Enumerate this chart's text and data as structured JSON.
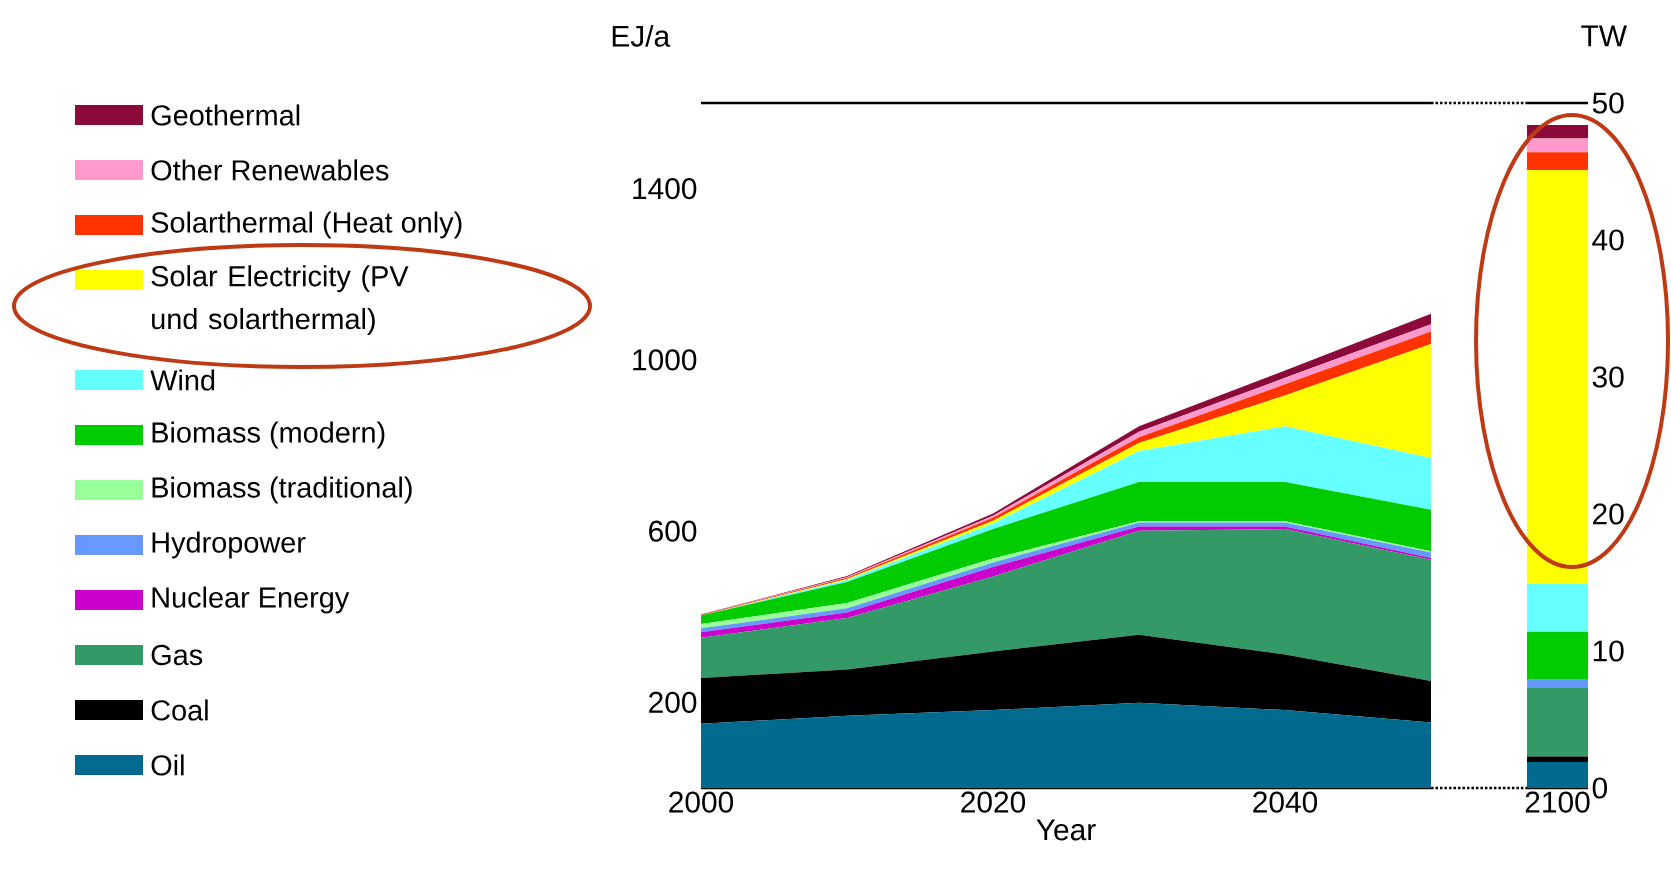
{
  "chart_data": [
    {
      "type": "area",
      "stacked": true,
      "xlabel": "Year",
      "ylabel": "EJ/a",
      "legend": "left",
      "x": [
        2000,
        2010,
        2020,
        2030,
        2040,
        2050
      ],
      "xlim": [
        2000,
        2050
      ],
      "xticks": [
        2000,
        2020,
        2040
      ],
      "ylim": [
        0,
        1600
      ],
      "yticks": [
        200,
        600,
        1000,
        1400
      ],
      "series": [
        {
          "name": "Oil",
          "color": "#006b8f",
          "values": [
            150,
            169,
            182,
            199,
            182,
            153
          ]
        },
        {
          "name": "Coal",
          "color": "#000000",
          "values": [
            107,
            108,
            137,
            159,
            130,
            97
          ]
        },
        {
          "name": "Gas",
          "color": "#339966",
          "values": [
            94,
            120,
            175,
            243,
            293,
            283
          ]
        },
        {
          "name": "Nuclear Energy",
          "color": "#cc00cc",
          "values": [
            13,
            13,
            22,
            10,
            6,
            4
          ]
        },
        {
          "name": "Hydropower",
          "color": "#6699ff",
          "values": [
            9,
            10,
            11,
            9,
            9,
            13
          ]
        },
        {
          "name": "Biomass (traditional)",
          "color": "#99ff99",
          "values": [
            10,
            12,
            9,
            3,
            3,
            3
          ]
        },
        {
          "name": "Biomass (modern)",
          "color": "#00cc00",
          "values": [
            20,
            49,
            69,
            92,
            92,
            97
          ]
        },
        {
          "name": "Wind",
          "color": "#66ffff",
          "values": [
            0,
            5,
            13,
            72,
            130,
            121
          ]
        },
        {
          "name": "Solar Electricity (PV und solarthermal)",
          "color": "#ffff00",
          "values": [
            0,
            2,
            6,
            19,
            72,
            266
          ]
        },
        {
          "name": "Solarthermal (Heat only)",
          "color": "#ff3300",
          "values": [
            1,
            3,
            7,
            13,
            26,
            29
          ]
        },
        {
          "name": "Other Renewables",
          "color": "#ff99cc",
          "values": [
            0,
            2,
            5,
            13,
            15,
            17
          ]
        },
        {
          "name": "Geothermal",
          "color": "#8b0a3a",
          "values": [
            1,
            2,
            5,
            13,
            17,
            25
          ]
        }
      ]
    },
    {
      "type": "bar",
      "stacked": true,
      "ylabel": "TW",
      "categories": [
        "2100"
      ],
      "ylim": [
        0,
        50
      ],
      "yticks": [
        0,
        10,
        20,
        30,
        40,
        50
      ],
      "series": [
        {
          "color": "#006b8f",
          "values": [
            1.9
          ]
        },
        {
          "color": "#000000",
          "values": [
            0.4
          ]
        },
        {
          "color": "#339966",
          "values": [
            5.0
          ]
        },
        {
          "color": "#cc00cc",
          "values": [
            0
          ]
        },
        {
          "color": "#6699ff",
          "values": [
            0.6
          ]
        },
        {
          "color": "#99ff99",
          "values": [
            0
          ]
        },
        {
          "color": "#00cc00",
          "values": [
            3.5
          ]
        },
        {
          "color": "#66ffff",
          "values": [
            3.5
          ]
        },
        {
          "color": "#ffff00",
          "values": [
            30.2
          ]
        },
        {
          "color": "#ff3300",
          "values": [
            1.3
          ]
        },
        {
          "color": "#ff99cc",
          "values": [
            1.0
          ]
        },
        {
          "color": "#8b0a3a",
          "values": [
            1.0
          ]
        }
      ]
    }
  ]
}
